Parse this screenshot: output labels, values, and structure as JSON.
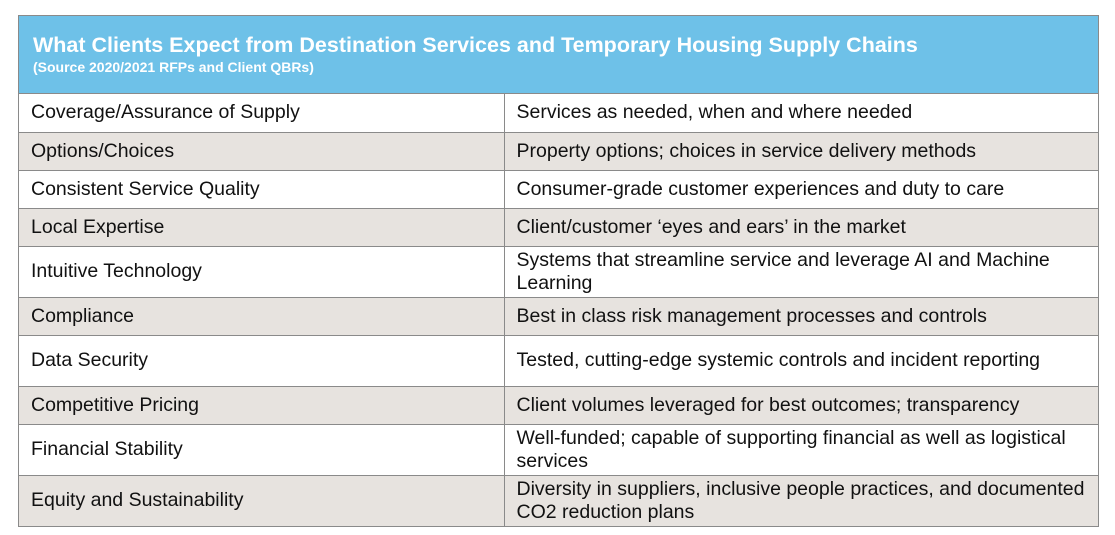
{
  "header": {
    "title": "What Clients Expect from Destination Services and Temporary Housing Supply Chains",
    "subtitle": "(Source 2020/2021 RFPs and Client QBRs)"
  },
  "colors": {
    "header_bg": "#6ec1e8",
    "row_alt_bg": "#e7e3df",
    "border": "#8a8a8a"
  },
  "rows": [
    {
      "expectation": "Coverage/Assurance of Supply",
      "description": "Services as needed, when and where needed"
    },
    {
      "expectation": "Options/Choices",
      "description": "Property options; choices in service delivery methods"
    },
    {
      "expectation": "Consistent Service Quality",
      "description": "Consumer-grade customer experiences and duty to care"
    },
    {
      "expectation": "Local Expertise",
      "description": "Client/customer ‘eyes and ears’ in the market"
    },
    {
      "expectation": "Intuitive Technology",
      "description": "Systems that streamline service and leverage AI and Machine Learning"
    },
    {
      "expectation": "Compliance",
      "description": "Best in class risk management processes and controls"
    },
    {
      "expectation": "Data Security",
      "description": "Tested, cutting-edge systemic controls and incident reporting"
    },
    {
      "expectation": "Competitive Pricing",
      "description": "Client volumes leveraged for best outcomes; transparency"
    },
    {
      "expectation": "Financial Stability",
      "description": "Well-funded; capable of supporting financial as well as logistical services"
    },
    {
      "expectation": "Equity and Sustainability",
      "description": "Diversity in suppliers, inclusive people practices, and documented CO2 reduction plans"
    }
  ]
}
